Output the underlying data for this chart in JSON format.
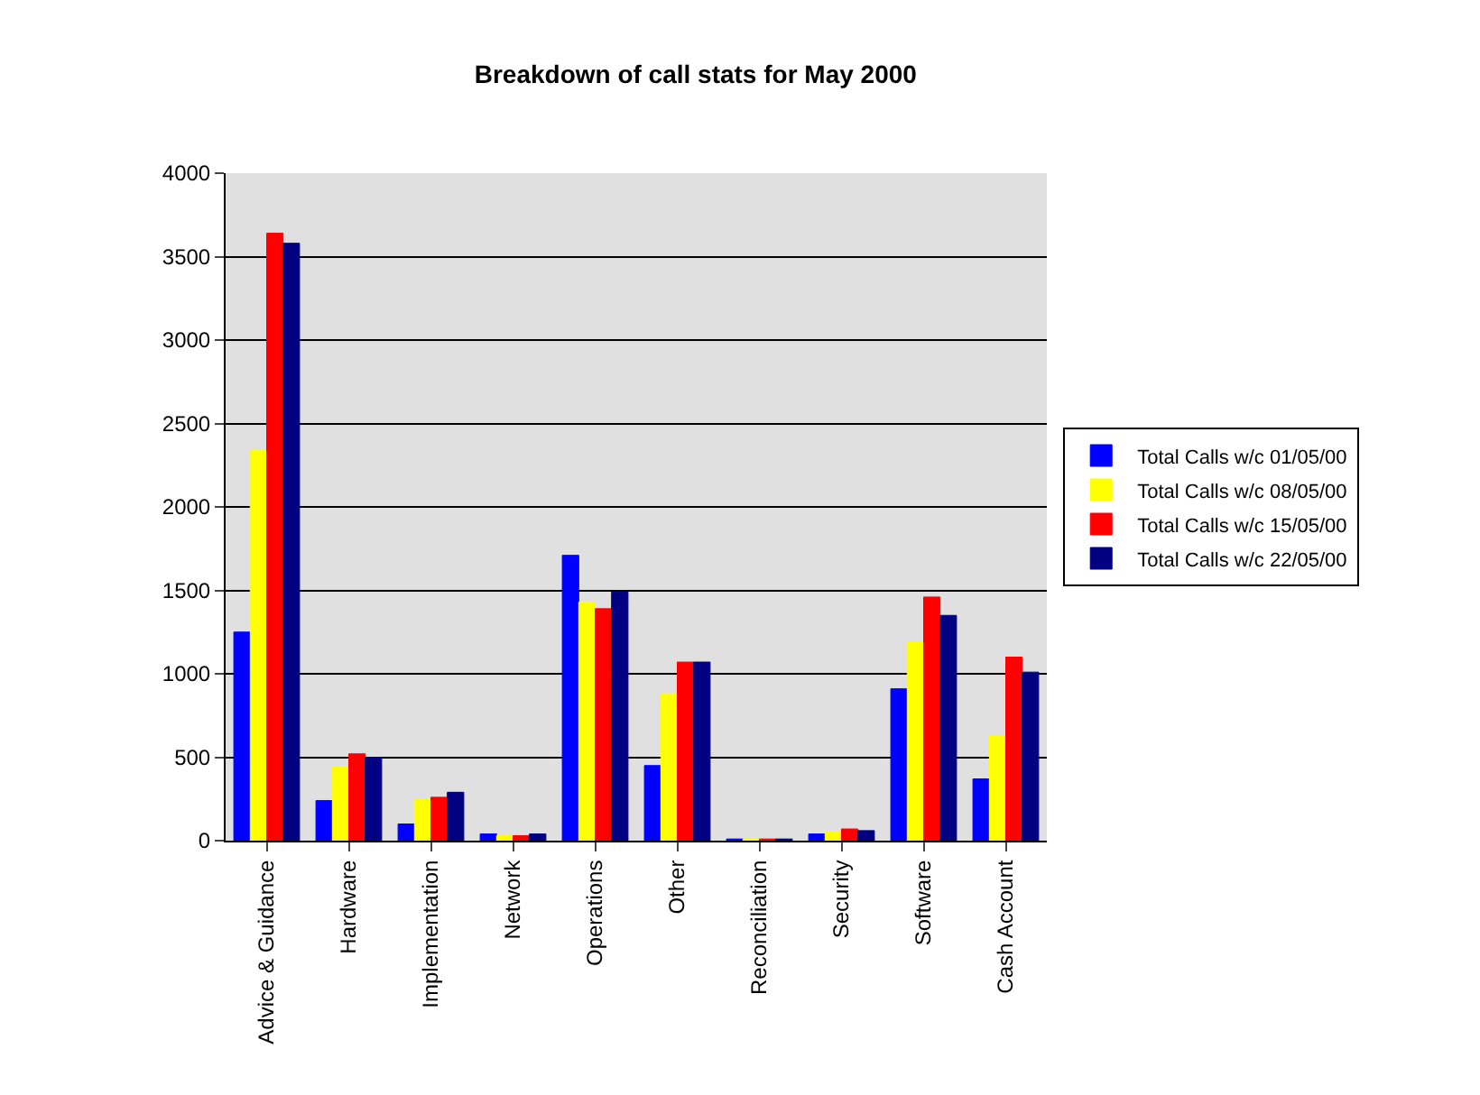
{
  "chart_data": {
    "type": "bar",
    "title": "Breakdown of call stats for May 2000",
    "categories": [
      "Advice & Guidance",
      "Hardware",
      "Implementation",
      "Network",
      "Operations",
      "Other",
      "Reconciliation",
      "Security",
      "Software",
      "Cash Account"
    ],
    "series": [
      {
        "name": "Total Calls w/c 01/05/00",
        "color": "#0000ff",
        "values": [
          1250,
          240,
          100,
          40,
          1710,
          450,
          10,
          40,
          910,
          370
        ]
      },
      {
        "name": "Total Calls w/c 08/05/00",
        "color": "#ffff00",
        "values": [
          2340,
          440,
          250,
          30,
          1430,
          880,
          10,
          50,
          1190,
          630
        ]
      },
      {
        "name": "Total Calls w/c 15/05/00",
        "color": "#ff0000",
        "values": [
          3640,
          520,
          260,
          30,
          1390,
          1070,
          10,
          70,
          1460,
          1100
        ]
      },
      {
        "name": "Total Calls w/c 22/05/00",
        "color": "#000080",
        "values": [
          3580,
          500,
          290,
          40,
          1490,
          1070,
          10,
          60,
          1350,
          1010
        ]
      }
    ],
    "ylim": [
      0,
      4000
    ],
    "yticks": [
      0,
      500,
      1000,
      1500,
      2000,
      2500,
      3000,
      3500,
      4000
    ],
    "grid": "y",
    "legend": "right"
  }
}
